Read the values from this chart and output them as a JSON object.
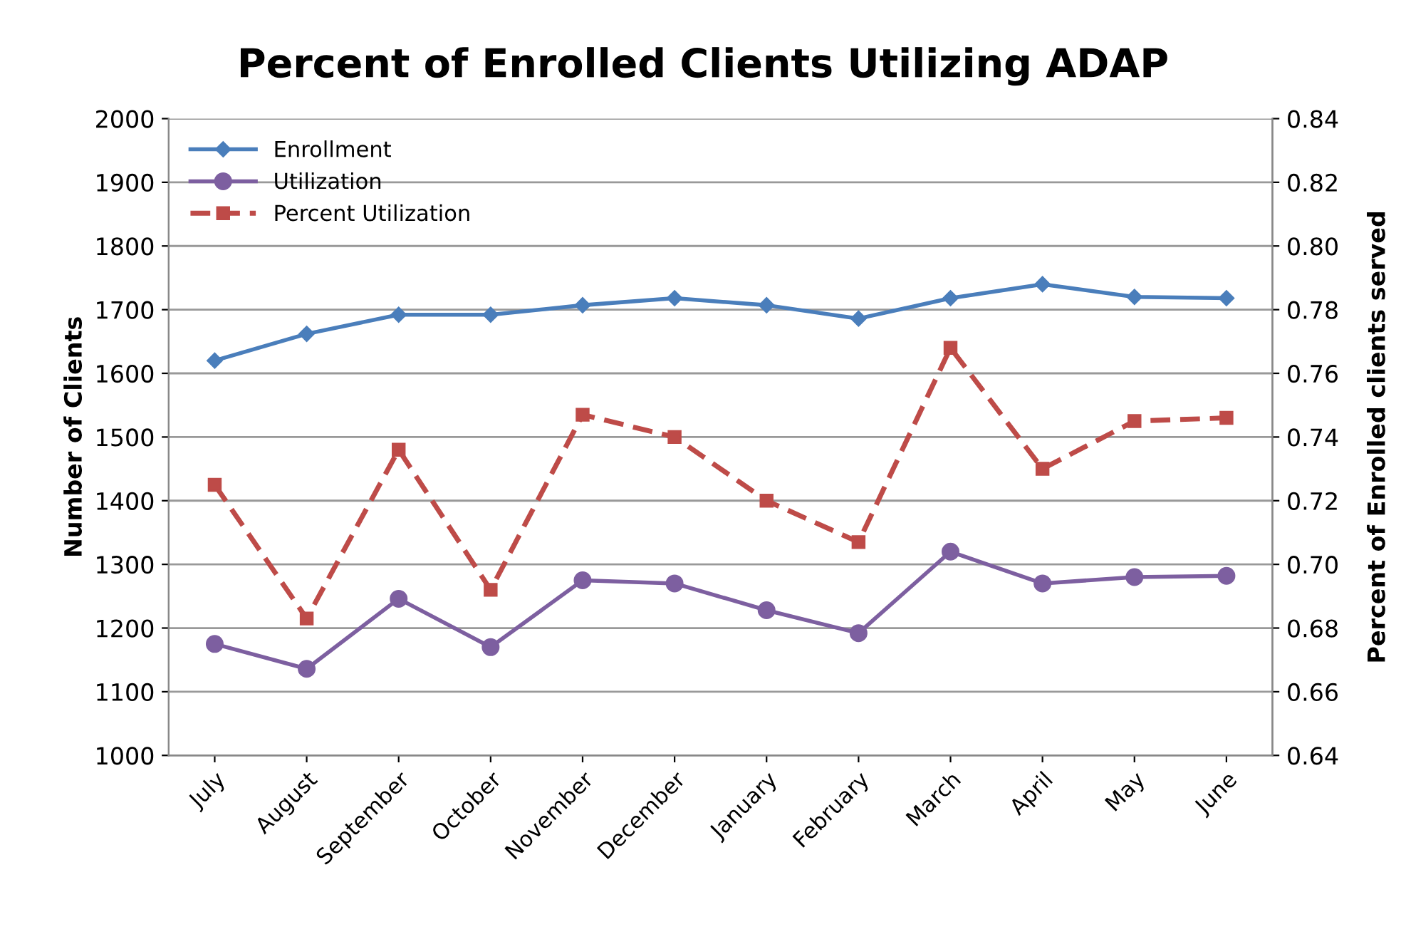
{
  "chart_data": {
    "type": "line",
    "title": "Percent of Enrolled Clients Utilizing ADAP",
    "ylabel": "Number of Clients",
    "y2label": "Percent of Enrolled clients served",
    "categories": [
      "July",
      "August",
      "September",
      "October",
      "November",
      "December",
      "January",
      "February",
      "March",
      "April",
      "May",
      "June"
    ],
    "series": [
      {
        "name": "Enrollment",
        "color": "#4a7ebb",
        "marker": "diamond",
        "line_style": "solid",
        "values": [
          1620,
          1662,
          1692,
          1692,
          1707,
          1718,
          1707,
          1686,
          1718,
          1740,
          1720,
          1718
        ]
      },
      {
        "name": "Utilization",
        "color": "#7d5fa0",
        "marker": "circle",
        "line_style": "solid",
        "values": [
          1175,
          1136,
          1246,
          1170,
          1275,
          1270,
          1228,
          1192,
          1320,
          1270,
          1280,
          1282
        ]
      },
      {
        "name": "Percent Utilization",
        "color": "#be4b48",
        "marker": "square",
        "line_style": "dashed",
        "axis": "y2",
        "values": [
          0.725,
          0.683,
          0.736,
          0.692,
          0.747,
          0.74,
          0.72,
          0.707,
          0.768,
          0.73,
          0.745,
          0.746
        ]
      }
    ],
    "ylim": [
      1000,
      2000
    ],
    "yticks": [
      1000,
      1100,
      1200,
      1300,
      1400,
      1500,
      1600,
      1700,
      1800,
      1900,
      2000
    ],
    "y2lim": [
      0.64,
      0.84
    ],
    "y2ticks": [
      {
        "value": 0.64,
        "label": "0.64"
      },
      {
        "value": 0.66,
        "label": "0.66"
      },
      {
        "value": 0.68,
        "label": "0.68"
      },
      {
        "value": 0.7,
        "label": "0.70"
      },
      {
        "value": 0.72,
        "label": "0.72"
      },
      {
        "value": 0.74,
        "label": "0.74"
      },
      {
        "value": 0.76,
        "label": "0.76"
      },
      {
        "value": 0.78,
        "label": "0.78"
      },
      {
        "value": 0.8,
        "label": "0.80"
      },
      {
        "value": 0.82,
        "label": "0.82"
      },
      {
        "value": 0.84,
        "label": "0.84"
      }
    ],
    "grid": "y",
    "legend": "top left"
  }
}
